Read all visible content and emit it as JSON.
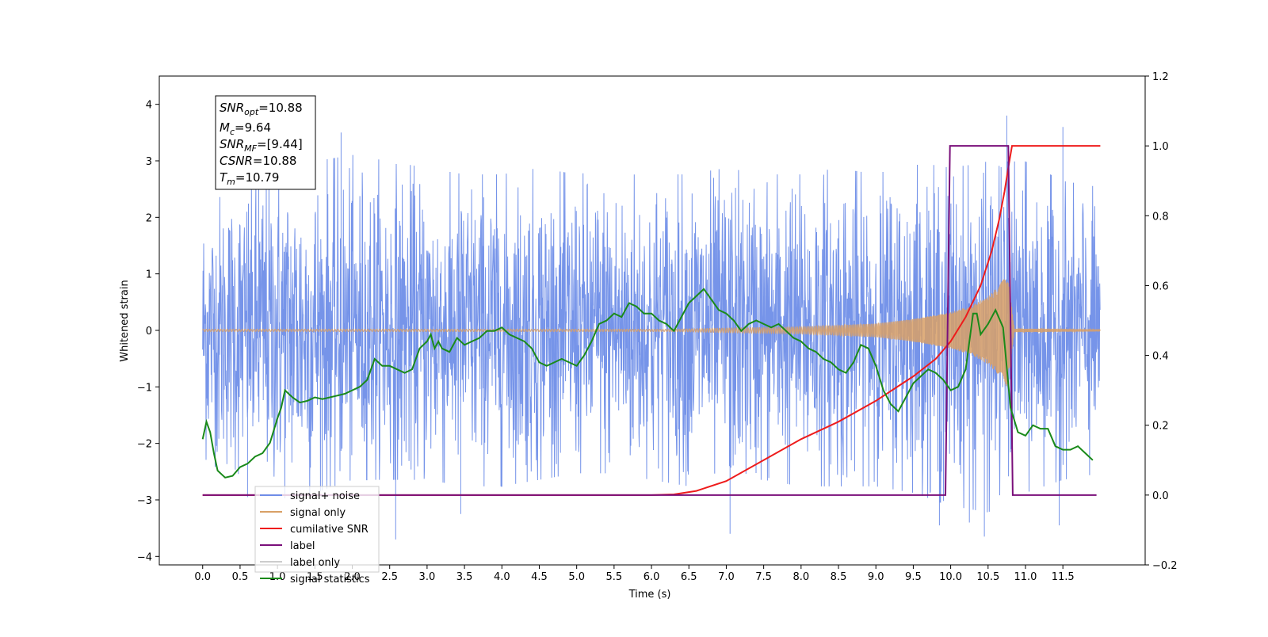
{
  "chart_data": {
    "type": "line",
    "xlabel": "Time (s)",
    "ylabel_left": "Whitened strain",
    "ylabel_right": "",
    "xlim": [
      -0.58,
      12.6
    ],
    "ylim_left": [
      -4.15,
      4.5
    ],
    "ylim_right": [
      -0.2,
      1.2
    ],
    "x_ticks": [
      "0.0",
      "0.5",
      "1.0",
      "1.5",
      "2.0",
      "2.5",
      "3.0",
      "3.5",
      "4.0",
      "4.5",
      "5.0",
      "5.5",
      "6.0",
      "6.5",
      "7.0",
      "7.5",
      "8.0",
      "8.5",
      "9.0",
      "9.5",
      "10.0",
      "10.5",
      "11.0",
      "11.5"
    ],
    "y_ticks_left": [
      "−4",
      "−3",
      "−2",
      "−1",
      "0",
      "1",
      "2",
      "3",
      "4"
    ],
    "y_ticks_right": [
      "−0.2",
      "0.0",
      "0.2",
      "0.4",
      "0.6",
      "0.8",
      "1.0",
      "1.2"
    ],
    "grid": false,
    "legend_position": "lower-left",
    "annotation": {
      "snr_opt": {
        "sym": "SNR",
        "sub": "opt",
        "text": "=10.88"
      },
      "mc": {
        "sym": "M",
        "sub": "c",
        "text": "=9.64"
      },
      "snr_mf": {
        "sym": "SNR",
        "sub": "MF",
        "text": "=[9.44]"
      },
      "csnr": {
        "sym": "CSNR",
        "sub": "",
        "text": "=10.88"
      },
      "tm": {
        "sym": "T",
        "sub": "m",
        "text": "=10.79"
      }
    },
    "series": [
      {
        "name": "signal+ noise",
        "color": "#6f8ee8",
        "axis": "left",
        "x_range": [
          0.0,
          12.0
        ],
        "envelope_upper": [
          2.0,
          2.2,
          2.4,
          2.6,
          2.7,
          2.6,
          2.5,
          2.4,
          2.4,
          2.5,
          2.4,
          2.5,
          2.4,
          2.4,
          2.5,
          2.4,
          2.4,
          2.5,
          2.4,
          2.6,
          2.5,
          2.6,
          2.6,
          2.3,
          2.2
        ],
        "envelope_lower": [
          -2.0,
          -2.3,
          -2.6,
          -2.5,
          -2.3,
          -2.3,
          -2.3,
          -2.4,
          -2.4,
          -2.3,
          -2.2,
          -2.2,
          -2.3,
          -2.4,
          -2.3,
          -2.3,
          -2.4,
          -2.4,
          -2.4,
          -2.5,
          -2.7,
          -2.8,
          -2.5,
          -2.3,
          -2.2
        ],
        "spikes": [
          [
            0.75,
            3.5
          ],
          [
            1.85,
            3.5
          ],
          [
            10.75,
            3.8
          ],
          [
            11.5,
            3.6
          ],
          [
            0.6,
            -2.95
          ],
          [
            2.58,
            -3.7
          ],
          [
            7.05,
            -3.6
          ],
          [
            10.45,
            -3.65
          ],
          [
            11.45,
            -3.45
          ],
          [
            3.45,
            -3.25
          ],
          [
            9.85,
            -3.45
          ],
          [
            10.25,
            -3.4
          ]
        ]
      },
      {
        "name": "signal only",
        "color": "#d9a066",
        "axis": "left",
        "envelope_t": [
          0,
          6.3,
          7.0,
          8.0,
          9.0,
          9.5,
          10.0,
          10.3,
          10.5,
          10.65,
          10.75,
          10.8,
          10.85,
          12.0
        ],
        "envelope_a": [
          0.02,
          0.02,
          0.04,
          0.06,
          0.12,
          0.2,
          0.32,
          0.45,
          0.6,
          0.8,
          1.0,
          0.6,
          0.03,
          0.02
        ]
      },
      {
        "name": "cumilative SNR",
        "color": "#ee1c1c",
        "axis": "right",
        "x": [
          0,
          6.0,
          6.3,
          6.6,
          7.0,
          7.5,
          8.0,
          8.5,
          9.0,
          9.5,
          9.8,
          10.0,
          10.2,
          10.4,
          10.55,
          10.65,
          10.72,
          10.78,
          10.82,
          12.0
        ],
        "y": [
          0,
          0,
          0.002,
          0.012,
          0.04,
          0.1,
          0.16,
          0.21,
          0.27,
          0.34,
          0.39,
          0.44,
          0.51,
          0.6,
          0.7,
          0.79,
          0.87,
          0.95,
          1.0,
          1.0
        ]
      },
      {
        "name": "label",
        "color": "#7a0f7a",
        "axis": "right",
        "x": [
          0,
          9.93,
          9.99,
          10.77,
          10.83,
          11.95
        ],
        "y": [
          0,
          0,
          1,
          1,
          0,
          0
        ]
      },
      {
        "name": "label only",
        "color": "#cccccc",
        "axis": "right",
        "x": [],
        "y": []
      },
      {
        "name": "signal statistics",
        "color": "#1a8a1a",
        "axis": "right",
        "x": [
          0.0,
          0.05,
          0.1,
          0.15,
          0.2,
          0.3,
          0.4,
          0.5,
          0.6,
          0.7,
          0.8,
          0.9,
          1.0,
          1.05,
          1.1,
          1.2,
          1.3,
          1.4,
          1.5,
          1.6,
          1.7,
          1.8,
          1.9,
          2.0,
          2.1,
          2.2,
          2.3,
          2.4,
          2.5,
          2.6,
          2.7,
          2.8,
          2.9,
          3.0,
          3.05,
          3.1,
          3.15,
          3.2,
          3.3,
          3.4,
          3.5,
          3.6,
          3.7,
          3.8,
          3.9,
          4.0,
          4.1,
          4.2,
          4.3,
          4.4,
          4.5,
          4.6,
          4.7,
          4.8,
          4.9,
          5.0,
          5.1,
          5.2,
          5.3,
          5.4,
          5.5,
          5.6,
          5.7,
          5.8,
          5.9,
          6.0,
          6.1,
          6.2,
          6.3,
          6.4,
          6.5,
          6.6,
          6.7,
          6.8,
          6.9,
          7.0,
          7.1,
          7.2,
          7.3,
          7.4,
          7.5,
          7.6,
          7.7,
          7.8,
          7.9,
          8.0,
          8.1,
          8.2,
          8.3,
          8.4,
          8.5,
          8.6,
          8.7,
          8.8,
          8.9,
          9.0,
          9.1,
          9.2,
          9.3,
          9.4,
          9.5,
          9.6,
          9.7,
          9.8,
          9.9,
          10.0,
          10.1,
          10.2,
          10.3,
          10.35,
          10.4,
          10.5,
          10.6,
          10.7,
          10.8,
          10.9,
          11.0,
          11.1,
          11.2,
          11.3,
          11.4,
          11.5,
          11.6,
          11.7,
          11.8,
          11.9
        ],
        "y": [
          0.16,
          0.21,
          0.18,
          0.12,
          0.07,
          0.05,
          0.055,
          0.08,
          0.09,
          0.11,
          0.12,
          0.15,
          0.22,
          0.25,
          0.3,
          0.28,
          0.265,
          0.27,
          0.28,
          0.275,
          0.28,
          0.285,
          0.29,
          0.3,
          0.31,
          0.33,
          0.39,
          0.37,
          0.37,
          0.36,
          0.35,
          0.36,
          0.42,
          0.44,
          0.46,
          0.42,
          0.44,
          0.42,
          0.41,
          0.45,
          0.43,
          0.44,
          0.45,
          0.47,
          0.47,
          0.48,
          0.46,
          0.45,
          0.44,
          0.42,
          0.38,
          0.37,
          0.38,
          0.39,
          0.38,
          0.37,
          0.4,
          0.44,
          0.49,
          0.5,
          0.52,
          0.51,
          0.55,
          0.54,
          0.52,
          0.52,
          0.5,
          0.49,
          0.47,
          0.51,
          0.55,
          0.57,
          0.59,
          0.56,
          0.53,
          0.52,
          0.5,
          0.47,
          0.49,
          0.5,
          0.49,
          0.48,
          0.49,
          0.47,
          0.45,
          0.44,
          0.42,
          0.41,
          0.39,
          0.38,
          0.36,
          0.35,
          0.38,
          0.43,
          0.42,
          0.37,
          0.3,
          0.26,
          0.24,
          0.28,
          0.32,
          0.34,
          0.36,
          0.35,
          0.33,
          0.3,
          0.31,
          0.36,
          0.52,
          0.52,
          0.46,
          0.49,
          0.53,
          0.48,
          0.25,
          0.18,
          0.17,
          0.2,
          0.19,
          0.19,
          0.14,
          0.13,
          0.13,
          0.14,
          0.12,
          0.1
        ]
      }
    ]
  }
}
